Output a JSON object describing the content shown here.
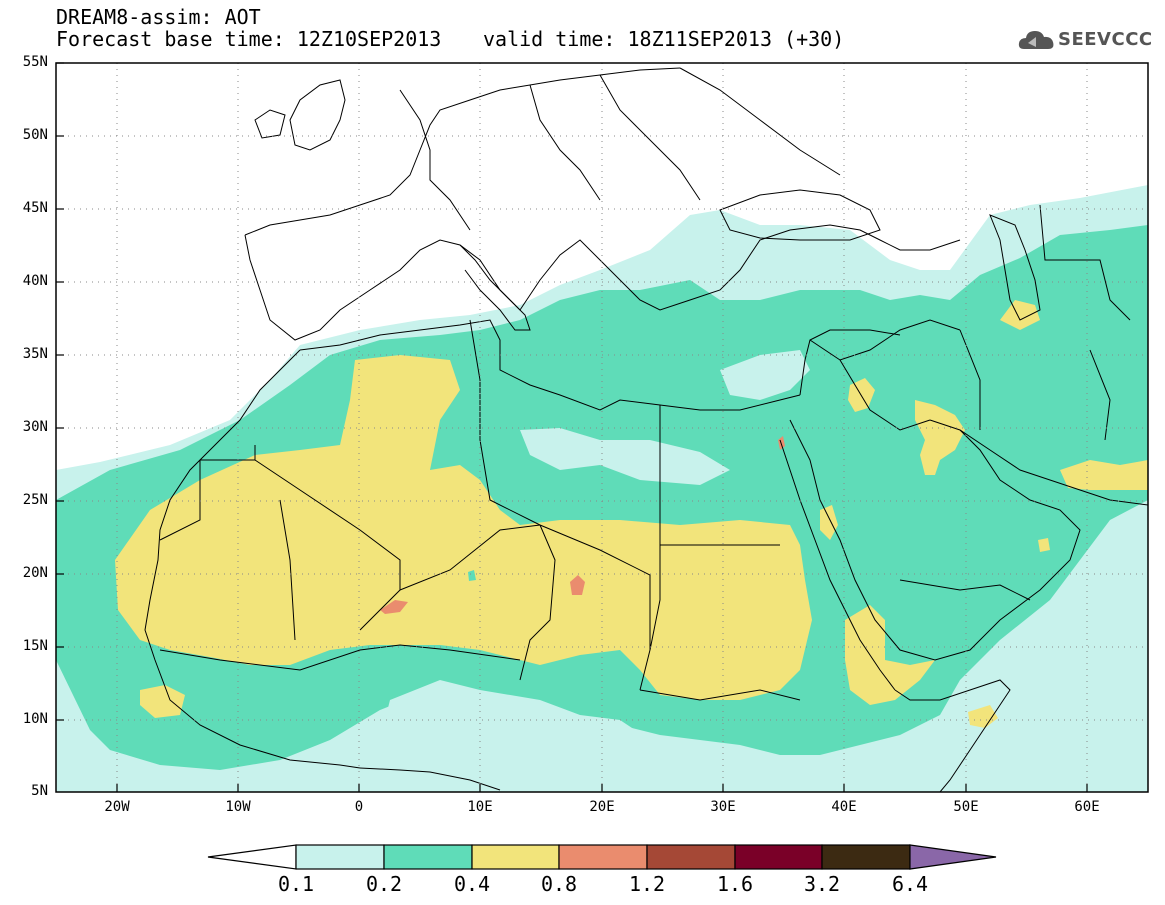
{
  "header": {
    "line1": "DREAM8-assim: AOT",
    "line2_base": "Forecast base time: 12Z10SEP2013",
    "line2_valid": "valid time: 18Z11SEP2013 (+30)"
  },
  "logo": {
    "text": "SEEVCCC",
    "icon": "cloud-icon"
  },
  "map": {
    "lon_range": [
      -25,
      65
    ],
    "lat_range": [
      5,
      55
    ],
    "y_ticks": [
      "55N",
      "50N",
      "45N",
      "40N",
      "35N",
      "30N",
      "25N",
      "20N",
      "15N",
      "10N",
      "5N"
    ],
    "x_ticks": [
      "20W",
      "10W",
      "0",
      "10E",
      "20E",
      "30E",
      "40E",
      "50E",
      "60E"
    ],
    "field_colors": {
      "0.1": "#c8f2ec",
      "0.2": "#5fdcb8",
      "0.4": "#f2e47b",
      "0.8": "#ea8c6e",
      "1.2": "#a54836",
      "1.6": "#7a0028",
      "3.2": "#3c2a12",
      "6.4": "#8a67a8"
    }
  },
  "colorbar": {
    "labels": [
      "0.1",
      "0.2",
      "0.4",
      "0.8",
      "1.2",
      "1.6",
      "3.2",
      "6.4"
    ],
    "colors": [
      "#ffffff",
      "#c8f2ec",
      "#5fdcb8",
      "#f2e47b",
      "#ea8c6e",
      "#a54836",
      "#7a0028",
      "#3c2a12",
      "#8a67a8"
    ]
  }
}
